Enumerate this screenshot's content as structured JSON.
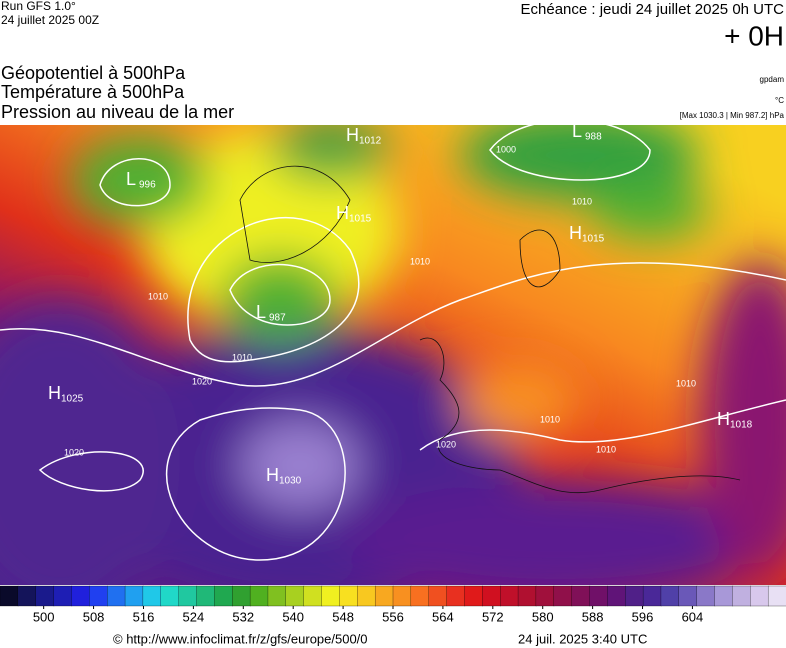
{
  "header": {
    "run": "Run GFS 1.0°",
    "run_date": "24 juillet 2025 00Z",
    "forecast": "Echéance : jeudi 24 juillet 2025 0h UTC",
    "lead": "+ 0H"
  },
  "titles": [
    "Géopotentiel à 500hPa",
    "Température à 500hPa",
    "Pression au niveau de la mer"
  ],
  "units": {
    "geopotential": "gpdam",
    "temperature": "°C",
    "pressure": "[Max 1030.3 | Min 987.2] hPa"
  },
  "pressure_centers": [
    {
      "letter": "H",
      "value": 1012
    },
    {
      "letter": "L",
      "value": 996
    },
    {
      "letter": "H",
      "value": 1015
    },
    {
      "letter": "L",
      "value": 987
    },
    {
      "letter": "L",
      "value": 988
    },
    {
      "letter": "H",
      "value": 1015
    },
    {
      "letter": "H",
      "value": 1025
    },
    {
      "letter": "H",
      "value": 1030
    },
    {
      "letter": "H",
      "value": 1018
    }
  ],
  "isobar_labels": [
    1010,
    1010,
    1020,
    1020,
    1010,
    1010,
    1020,
    1010,
    1010,
    1000,
    1010
  ],
  "colorbar": {
    "range": [
      493,
      619
    ],
    "ticks": [
      500,
      508,
      516,
      524,
      532,
      540,
      548,
      556,
      564,
      572,
      580,
      588,
      596,
      604
    ],
    "colors": [
      "#0a0a2a",
      "#14145a",
      "#1a1a8c",
      "#1e1eb4",
      "#2020dc",
      "#2040f0",
      "#2070f0",
      "#20a0f0",
      "#20c8e8",
      "#20d8c8",
      "#20c8a0",
      "#20b878",
      "#20a850",
      "#30a030",
      "#50b020",
      "#80c020",
      "#a8d020",
      "#d0e020",
      "#f0f020",
      "#f8e020",
      "#f8c820",
      "#f8a820",
      "#f89020",
      "#f87020",
      "#f05020",
      "#e83020",
      "#e01a1a",
      "#d01020",
      "#c0102a",
      "#b01030",
      "#a0103c",
      "#90104a",
      "#801058",
      "#701068",
      "#601478",
      "#502088",
      "#4a2898",
      "#5040a8",
      "#6a58b8",
      "#8a78c8",
      "#a898d8",
      "#c0b0e0",
      "#d8c8ec",
      "#e8e0f4"
    ]
  },
  "footer": {
    "url": "© http://www.infoclimat.fr/z/gfs/europe/500/0",
    "issued": "24 juil. 2025  3:40 UTC"
  }
}
